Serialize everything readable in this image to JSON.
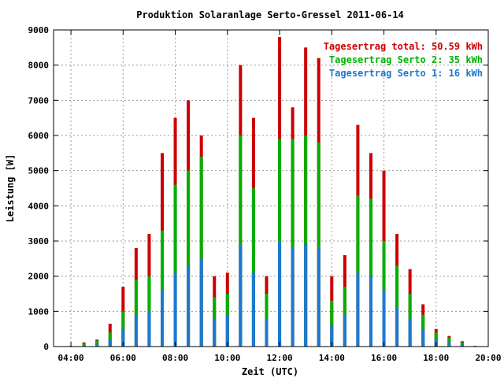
{
  "chart_data": {
    "type": "bar",
    "title": "Produktion Solaranlage Serto-Gressel 2011-06-14",
    "xlabel": "Zeit (UTC)",
    "ylabel": "Leistung [W]",
    "xlim": [
      "03:20",
      "20:00"
    ],
    "ylim": [
      0,
      9000
    ],
    "x_ticks": [
      "04:00",
      "06:00",
      "08:00",
      "10:00",
      "12:00",
      "14:00",
      "16:00",
      "18:00",
      "20:00"
    ],
    "y_ticks": [
      0,
      1000,
      2000,
      3000,
      4000,
      5000,
      6000,
      7000,
      8000,
      9000
    ],
    "grid": true,
    "legend_position": "top-right",
    "series": [
      {
        "name": "Tagesertrag total: 50.59 kWh",
        "color": "#cc0000",
        "x": [
          "04:00",
          "04:30",
          "05:00",
          "05:30",
          "06:00",
          "06:30",
          "07:00",
          "07:30",
          "08:00",
          "08:30",
          "09:00",
          "09:30",
          "10:00",
          "10:30",
          "11:00",
          "11:30",
          "12:00",
          "12:30",
          "13:00",
          "13:30",
          "14:00",
          "14:30",
          "15:00",
          "15:30",
          "16:00",
          "16:30",
          "17:00",
          "17:30",
          "18:00",
          "18:30",
          "19:00",
          "19:30"
        ],
        "values": [
          20,
          120,
          200,
          650,
          1700,
          2800,
          3200,
          5500,
          6500,
          7000,
          6000,
          2000,
          2100,
          8000,
          6500,
          2000,
          8800,
          6800,
          8500,
          8200,
          2000,
          2600,
          6300,
          5500,
          5000,
          3200,
          2200,
          1200,
          500,
          300,
          150,
          20
        ]
      },
      {
        "name": "Tagesertrag Serto 2: 35 kWh",
        "color": "#00b000",
        "x": [
          "04:00",
          "04:30",
          "05:00",
          "05:30",
          "06:00",
          "06:30",
          "07:00",
          "07:30",
          "08:00",
          "08:30",
          "09:00",
          "09:30",
          "10:00",
          "10:30",
          "11:00",
          "11:30",
          "12:00",
          "12:30",
          "13:00",
          "13:30",
          "14:00",
          "14:30",
          "15:00",
          "15:30",
          "16:00",
          "16:30",
          "17:00",
          "17:30",
          "18:00",
          "18:30",
          "19:00",
          "19:30"
        ],
        "values": [
          15,
          100,
          170,
          400,
          1000,
          1900,
          2000,
          3300,
          4600,
          5000,
          5400,
          1400,
          1500,
          6000,
          4500,
          1500,
          5900,
          5900,
          6000,
          5800,
          1300,
          1700,
          4300,
          4200,
          3000,
          2300,
          1500,
          900,
          400,
          250,
          120,
          15
        ]
      },
      {
        "name": "Tagesertrag Serto 1: 16 kWh",
        "color": "#1e78d2",
        "x": [
          "04:00",
          "04:30",
          "05:00",
          "05:30",
          "06:00",
          "06:30",
          "07:00",
          "07:30",
          "08:00",
          "08:30",
          "09:00",
          "09:30",
          "10:00",
          "10:30",
          "11:00",
          "11:30",
          "12:00",
          "12:30",
          "13:00",
          "13:30",
          "14:00",
          "14:30",
          "15:00",
          "15:30",
          "16:00",
          "16:30",
          "17:00",
          "17:30",
          "18:00",
          "18:30",
          "19:00",
          "19:30"
        ],
        "values": [
          10,
          50,
          80,
          200,
          500,
          900,
          1000,
          1600,
          2100,
          2300,
          2500,
          800,
          900,
          2900,
          2100,
          800,
          3000,
          2800,
          2900,
          2800,
          600,
          900,
          2100,
          2000,
          1600,
          1100,
          800,
          500,
          200,
          120,
          60,
          10
        ]
      }
    ]
  }
}
